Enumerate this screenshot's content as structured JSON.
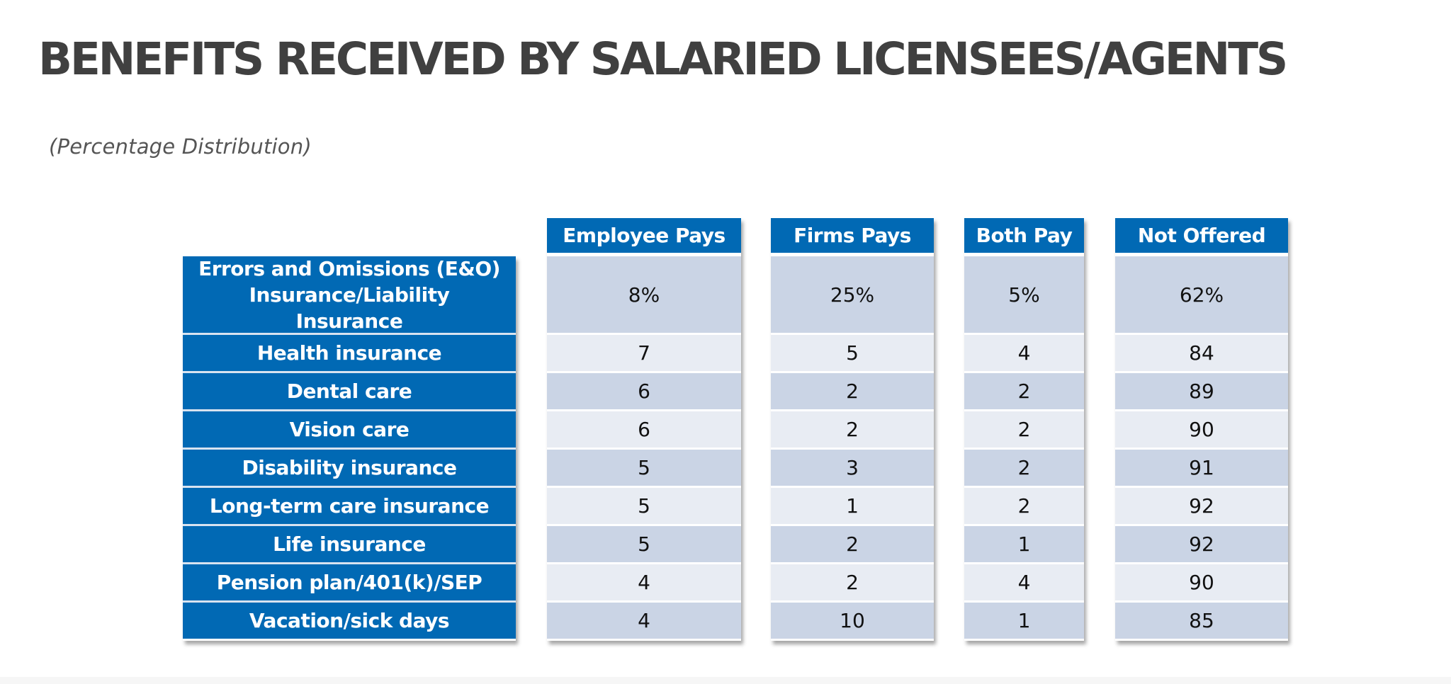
{
  "title": "BENEFITS RECEIVED BY SALARIED LICENSEES/AGENTS",
  "subtitle": "(Percentage Distribution)",
  "colors": {
    "header_blue": "#0169b4",
    "row_dark": "#cad4e5",
    "row_light": "#e8ecf3",
    "title_gray": "#404040"
  },
  "table": {
    "columns": [
      "Employee Pays",
      "Firms Pays",
      "Both Pay",
      "Not Offered"
    ],
    "rows": [
      {
        "label": "Errors and Omissions (E&O) Insurance/Liability Insurance",
        "label_lines": [
          "Errors and Omissions (E&O)",
          "Insurance/Liability",
          "Insurance"
        ],
        "values": [
          "8%",
          "25%",
          "5%",
          "62%"
        ]
      },
      {
        "label": "Health insurance",
        "values": [
          "7",
          "5",
          "4",
          "84"
        ]
      },
      {
        "label": "Dental care",
        "values": [
          "6",
          "2",
          "2",
          "89"
        ]
      },
      {
        "label": "Vision care",
        "values": [
          "6",
          "2",
          "2",
          "90"
        ]
      },
      {
        "label": "Disability insurance",
        "values": [
          "5",
          "3",
          "2",
          "91"
        ]
      },
      {
        "label": "Long-term care insurance",
        "values": [
          "5",
          "1",
          "2",
          "92"
        ]
      },
      {
        "label": "Life insurance",
        "values": [
          "5",
          "2",
          "1",
          "92"
        ]
      },
      {
        "label": "Pension plan/401(k)/SEP",
        "values": [
          "4",
          "2",
          "4",
          "90"
        ]
      },
      {
        "label": "Vacation/sick days",
        "values": [
          "4",
          "10",
          "1",
          "85"
        ]
      }
    ]
  }
}
